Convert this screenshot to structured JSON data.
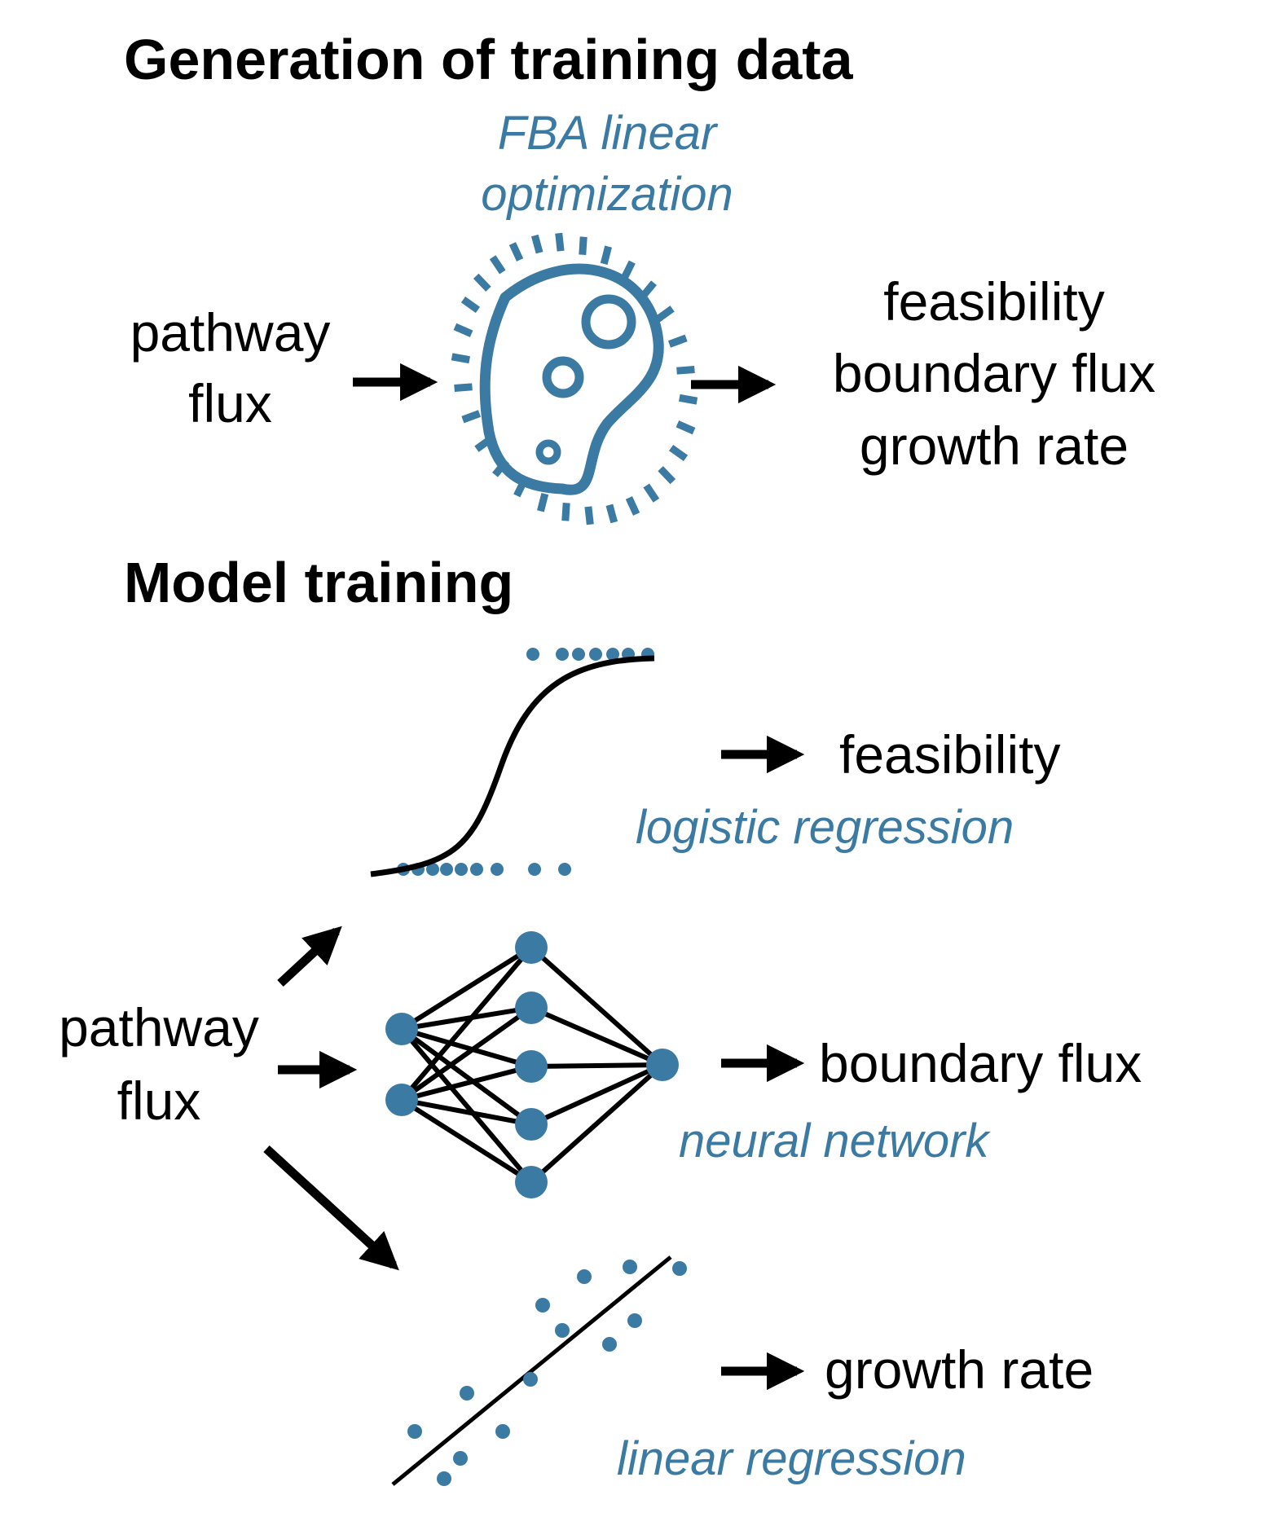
{
  "colors": {
    "accent": "#3b7aa3",
    "ink": "#000000",
    "background": "#ffffff"
  },
  "section1": {
    "heading": "Generation of training data",
    "method_line1": "FBA linear",
    "method_line2": "optimization",
    "input_line1": "pathway",
    "input_line2": "flux",
    "icon": "bacterium-icon",
    "outputs": [
      "feasibility",
      "boundary flux",
      "growth rate"
    ]
  },
  "section2": {
    "heading": "Model training",
    "input_line1": "pathway",
    "input_line2": "flux",
    "models": [
      {
        "output": "feasibility",
        "method": "logistic regression",
        "icon": "sigmoid-curve-icon"
      },
      {
        "output": "boundary flux",
        "method": "neural network",
        "icon": "neural-network-icon"
      },
      {
        "output": "growth rate",
        "method": "linear regression",
        "icon": "scatter-line-icon"
      }
    ]
  }
}
